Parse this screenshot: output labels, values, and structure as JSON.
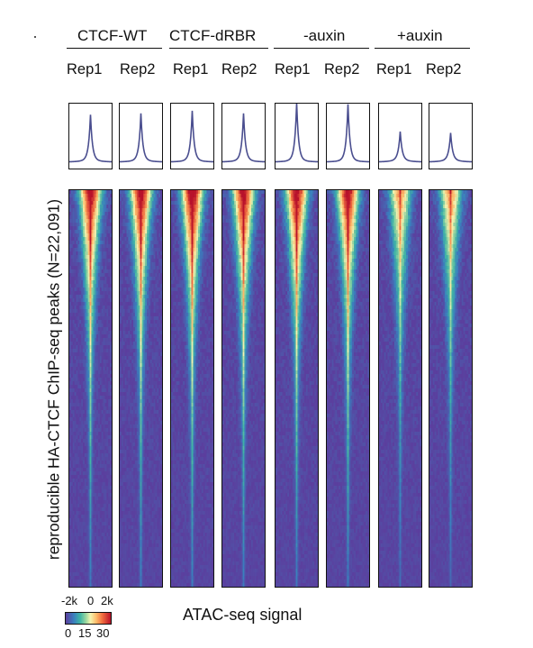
{
  "figure": {
    "ylabel": "reproducible HA-CTCF ChIP-seq peaks (N=22,091)",
    "xlabel": "ATAC-seq signal",
    "groups": [
      "CTCF-WT",
      "CTCF-dRBR",
      "-auxin",
      "+auxin"
    ],
    "reps": [
      "Rep1",
      "Rep2",
      "Rep1",
      "Rep2",
      "Rep1",
      "Rep2",
      "Rep1",
      "Rep2"
    ],
    "x_ticks": [
      "-2k",
      "0",
      "2k"
    ],
    "colorbar_ticks": [
      "0",
      "15",
      "30"
    ]
  },
  "colors": {
    "low": "#5b3f9e",
    "high": "#b9122a",
    "profile_line": "#4a4e8f"
  },
  "chart_data": {
    "type": "heatmap",
    "x_range": [
      "-2k",
      "2k"
    ],
    "color_range": [
      0,
      30
    ],
    "n_rows": 22091,
    "panels": [
      {
        "group": "CTCF-WT",
        "rep": "Rep1",
        "profile_peak": 0.68,
        "intensity": 1.0
      },
      {
        "group": "CTCF-WT",
        "rep": "Rep2",
        "profile_peak": 0.7,
        "intensity": 1.0
      },
      {
        "group": "CTCF-dRBR",
        "rep": "Rep1",
        "profile_peak": 0.74,
        "intensity": 1.05
      },
      {
        "group": "CTCF-dRBR",
        "rep": "Rep2",
        "profile_peak": 0.7,
        "intensity": 1.0
      },
      {
        "group": "-auxin",
        "rep": "Rep1",
        "profile_peak": 0.86,
        "intensity": 1.0
      },
      {
        "group": "-auxin",
        "rep": "Rep2",
        "profile_peak": 0.84,
        "intensity": 1.0
      },
      {
        "group": "+auxin",
        "rep": "Rep1",
        "profile_peak": 0.42,
        "intensity": 0.72
      },
      {
        "group": "+auxin",
        "rep": "Rep2",
        "profile_peak": 0.4,
        "intensity": 0.72
      }
    ]
  }
}
